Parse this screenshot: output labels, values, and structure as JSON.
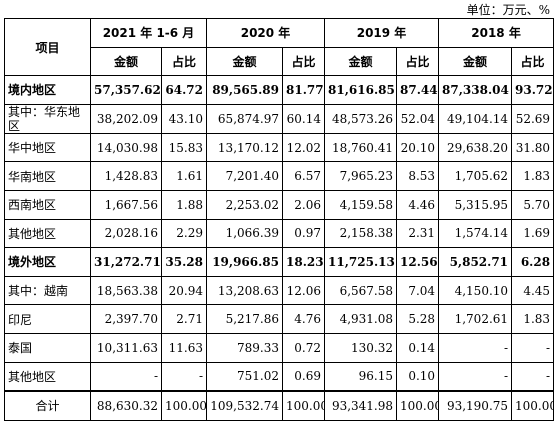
{
  "unit_note": "单位：万元、%",
  "header": {
    "project": "项目",
    "periods": [
      "2021 年 1-6 月",
      "2020 年",
      "2019 年",
      "2018 年"
    ],
    "amount": "金额",
    "ratio": "占比"
  },
  "rows": [
    {
      "label": "境内地区",
      "cells": [
        "57,357.62",
        "64.72",
        "89,565.89",
        "81.77",
        "81,616.85",
        "87.44",
        "87,338.04",
        "93.72"
      ]
    },
    {
      "label": "其中：华东地区",
      "cells": [
        "38,202.09",
        "43.10",
        "65,874.97",
        "60.14",
        "48,573.26",
        "52.04",
        "49,104.14",
        "52.69"
      ]
    },
    {
      "label": "华中地区",
      "cells": [
        "14,030.98",
        "15.83",
        "13,170.12",
        "12.02",
        "18,760.41",
        "20.10",
        "29,638.20",
        "31.80"
      ]
    },
    {
      "label": "华南地区",
      "cells": [
        "1,428.83",
        "1.61",
        "7,201.40",
        "6.57",
        "7,965.23",
        "8.53",
        "1,705.62",
        "1.83"
      ]
    },
    {
      "label": "西南地区",
      "cells": [
        "1,667.56",
        "1.88",
        "2,253.02",
        "2.06",
        "4,159.58",
        "4.46",
        "5,315.95",
        "5.70"
      ]
    },
    {
      "label": "其他地区",
      "cells": [
        "2,028.16",
        "2.29",
        "1,066.39",
        "0.97",
        "2,158.38",
        "2.31",
        "1,574.14",
        "1.69"
      ]
    },
    {
      "label": "境外地区",
      "cells": [
        "31,272.71",
        "35.28",
        "19,966.85",
        "18.23",
        "11,725.13",
        "12.56",
        "5,852.71",
        "6.28"
      ]
    },
    {
      "label": "其中：越南",
      "cells": [
        "18,563.38",
        "20.94",
        "13,208.63",
        "12.06",
        "6,567.58",
        "7.04",
        "4,150.10",
        "4.45"
      ]
    },
    {
      "label": "印尼",
      "cells": [
        "2,397.70",
        "2.71",
        "5,217.86",
        "4.76",
        "4,931.08",
        "5.28",
        "1,702.61",
        "1.83"
      ]
    },
    {
      "label": "泰国",
      "cells": [
        "10,311.63",
        "11.63",
        "789.33",
        "0.72",
        "130.32",
        "0.14",
        "-",
        "-"
      ]
    },
    {
      "label": "其他地区",
      "cells": [
        "-",
        "-",
        "751.02",
        "0.69",
        "96.15",
        "0.10",
        "-",
        "-"
      ]
    },
    {
      "label": "合计",
      "cells": [
        "88,630.32",
        "100.00",
        "109,532.74",
        "100.00",
        "93,341.98",
        "100.00",
        "93,190.75",
        "100.00"
      ]
    }
  ]
}
